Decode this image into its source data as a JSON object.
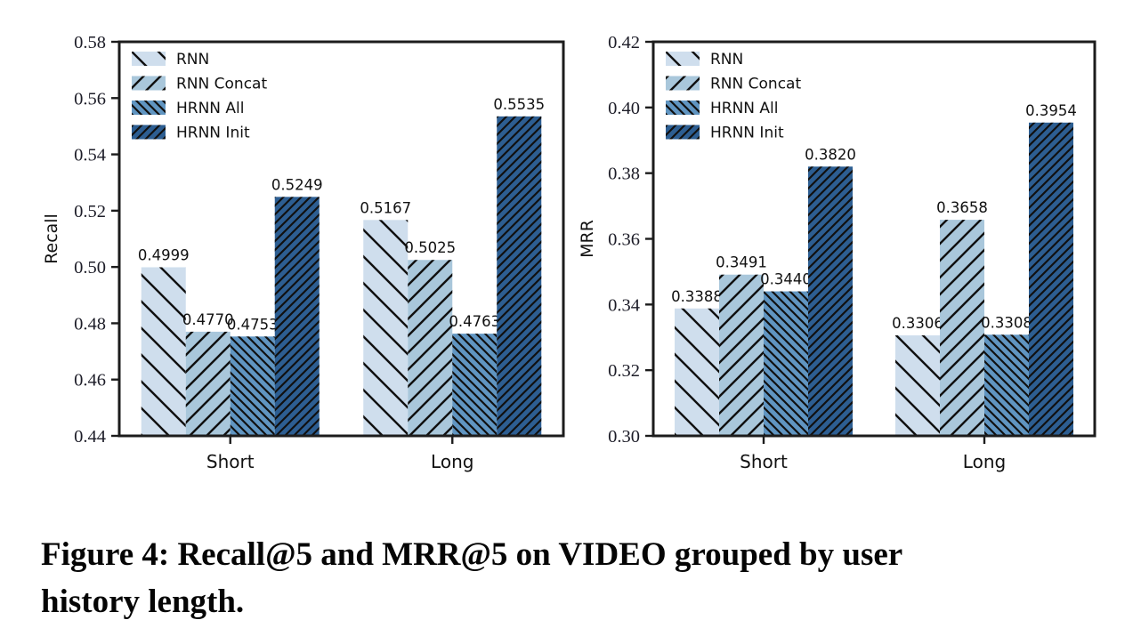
{
  "caption": {
    "line1": "Figure 4: Recall@5 and MRR@5 on VIDEO grouped by user",
    "line2": "history length."
  },
  "colors": {
    "frame": "#1c1c1c",
    "hatch_line": "#101010",
    "tick_text": "#1d1d28",
    "label_text": "#111111",
    "series_rnn": "#cfdeed",
    "series_rnn_concat": "#a9c7db",
    "series_hrnn_all": "#6095c1",
    "series_hrnn_init": "#2d5e92"
  },
  "chart_data": [
    {
      "type": "bar",
      "title": "",
      "xlabel": "",
      "ylabel": "Recall",
      "categories": [
        "Short",
        "Long"
      ],
      "series": [
        {
          "name": "RNN",
          "values": [
            0.4999,
            0.5167
          ],
          "color": "#cfdeed",
          "hatch": "backslash-sparse"
        },
        {
          "name": "RNN Concat",
          "values": [
            0.477,
            0.5025
          ],
          "color": "#a9c7db",
          "hatch": "slash-medium"
        },
        {
          "name": "HRNN All",
          "values": [
            0.4753,
            0.4763
          ],
          "color": "#6095c1",
          "hatch": "backslash-dense"
        },
        {
          "name": "HRNN Init",
          "values": [
            0.5249,
            0.5535
          ],
          "color": "#2d5e92",
          "hatch": "slash-dense"
        }
      ],
      "ylim": [
        0.44,
        0.58
      ],
      "ytick_step": 0.02,
      "ytick_decimals": 2,
      "value_label_decimals": 4,
      "legend_position": "upper left",
      "grid": false
    },
    {
      "type": "bar",
      "title": "",
      "xlabel": "",
      "ylabel": "MRR",
      "categories": [
        "Short",
        "Long"
      ],
      "series": [
        {
          "name": "RNN",
          "values": [
            0.3388,
            0.3306
          ],
          "color": "#cfdeed",
          "hatch": "backslash-sparse"
        },
        {
          "name": "RNN Concat",
          "values": [
            0.3491,
            0.3658
          ],
          "color": "#a9c7db",
          "hatch": "slash-medium"
        },
        {
          "name": "HRNN All",
          "values": [
            0.344,
            0.3308
          ],
          "color": "#6095c1",
          "hatch": "backslash-dense"
        },
        {
          "name": "HRNN Init",
          "values": [
            0.382,
            0.3954
          ],
          "color": "#2d5e92",
          "hatch": "slash-dense"
        }
      ],
      "ylim": [
        0.3,
        0.42
      ],
      "ytick_step": 0.02,
      "ytick_decimals": 2,
      "value_label_decimals": 4,
      "legend_position": "upper left",
      "grid": false
    }
  ]
}
